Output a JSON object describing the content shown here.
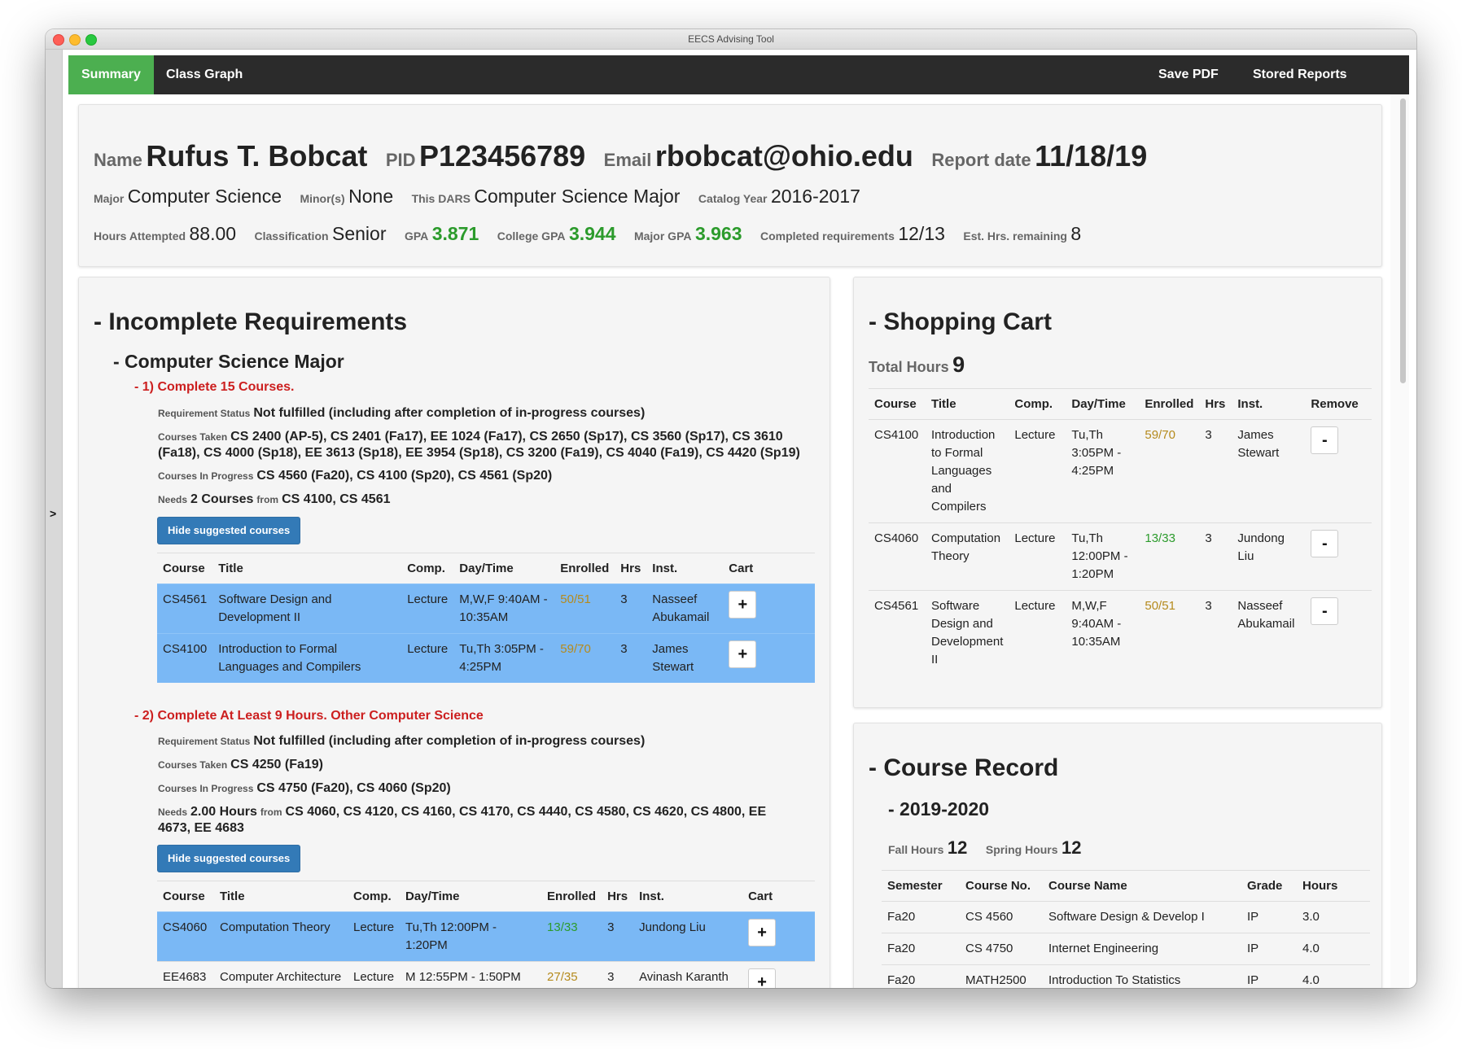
{
  "window": {
    "title": "EECS Advising Tool"
  },
  "sidebar": {
    "toggle": ">"
  },
  "nav": {
    "summary": "Summary",
    "class_graph": "Class Graph",
    "save_pdf": "Save PDF",
    "stored_reports": "Stored Reports"
  },
  "student": {
    "name_label": "Name",
    "name": "Rufus T. Bobcat",
    "pid_label": "PID",
    "pid": "P123456789",
    "email_label": "Email",
    "email": "rbobcat@ohio.edu",
    "report_label": "Report date",
    "report_date": "11/18/19",
    "major_label": "Major",
    "major": "Computer Science",
    "minor_label": "Minor(s)",
    "minor": "None",
    "dars_label": "This DARS",
    "dars": "Computer Science Major",
    "catalog_label": "Catalog Year",
    "catalog": "2016-2017",
    "hours_label": "Hours Attempted",
    "hours": "88.00",
    "class_label": "Classification",
    "classification": "Senior",
    "gpa_label": "GPA",
    "gpa": "3.871",
    "college_gpa_label": "College GPA",
    "college_gpa": "3.944",
    "major_gpa_label": "Major GPA",
    "major_gpa": "3.963",
    "completed_label": "Completed requirements",
    "completed": "12/13",
    "est_label": "Est. Hrs. remaining",
    "est": "8"
  },
  "incomplete": {
    "heading": "- Incomplete Requirements",
    "program": "- Computer Science Major",
    "status_key": "Requirement Status",
    "taken_key": "Courses Taken",
    "progress_key": "Courses In Progress",
    "needs_key": "Needs",
    "from_key": "from",
    "hide_btn": "Hide suggested courses",
    "headers1": [
      "Course",
      "Title",
      "Comp.",
      "Day/Time",
      "Enrolled",
      "Hrs",
      "Inst.",
      "Cart"
    ],
    "req1": {
      "title": "- 1) Complete 15 Courses.",
      "status": "Not fulfilled (including after completion of in-progress courses)",
      "taken": "CS 2400 (AP-5), CS 2401 (Fa17), EE 1024 (Fa17), CS 2650 (Sp17), CS 3560 (Sp17), CS 3610 (Fa18), CS 4000 (Sp18), EE 3613 (Sp18), EE 3954 (Sp18), CS 3200 (Fa19), CS 4040 (Fa19), CS 4420 (Sp19)",
      "in_progress": "CS 4560 (Fa20), CS 4100 (Sp20), CS 4561 (Sp20)",
      "needs": "2 Courses",
      "from": "CS 4100, CS 4561",
      "rows": [
        {
          "course": "CS4561",
          "title": "Software Design and Development II",
          "comp": "Lecture",
          "time": "M,W,F 9:40AM - 10:35AM",
          "enrolled": "50/51",
          "hrs": "3",
          "inst": "Nasseef Abukamail",
          "cart": "+"
        },
        {
          "course": "CS4100",
          "title": "Introduction to Formal Languages and Compilers",
          "comp": "Lecture",
          "time": "Tu,Th 3:05PM - 4:25PM",
          "enrolled": "59/70",
          "hrs": "3",
          "inst": "James Stewart",
          "cart": "+"
        }
      ]
    },
    "req2": {
      "title": "- 2) Complete At Least 9 Hours. Other Computer Science",
      "status": "Not fulfilled (including after completion of in-progress courses)",
      "taken": "CS 4250 (Fa19)",
      "in_progress": "CS 4750 (Fa20), CS 4060 (Sp20)",
      "needs": "2.00 Hours",
      "from": "CS 4060, CS 4120, CS 4160, CS 4170, CS 4440, CS 4580, CS 4620, CS 4800, EE 4673, EE 4683",
      "rows": [
        {
          "course": "CS4060",
          "title": "Computation Theory",
          "comp": "Lecture",
          "time": "Tu,Th 12:00PM - 1:20PM",
          "enrolled": "13/33",
          "hrs": "3",
          "inst": "Jundong Liu",
          "cart": "+"
        },
        {
          "course": "EE4683",
          "title": "Computer Architecture",
          "comp": "Lecture",
          "time": "M 12:55PM - 1:50PM",
          "enrolled": "27/35",
          "hrs": "3",
          "inst": "Avinash Karanth",
          "cart": "+"
        }
      ]
    }
  },
  "cart": {
    "heading": "- Shopping Cart",
    "total_label": "Total Hours",
    "total": "9",
    "headers": [
      "Course",
      "Title",
      "Comp.",
      "Day/Time",
      "Enrolled",
      "Hrs",
      "Inst.",
      "Remove"
    ],
    "rows": [
      {
        "course": "CS4100",
        "title": "Introduction to Formal Languages and Compilers",
        "comp": "Lecture",
        "time": "Tu,Th 3:05PM - 4:25PM",
        "enrolled": "59/70",
        "hrs": "3",
        "inst": "James Stewart",
        "remove": "-"
      },
      {
        "course": "CS4060",
        "title": "Computation Theory",
        "comp": "Lecture",
        "time": "Tu,Th 12:00PM - 1:20PM",
        "enrolled": "13/33",
        "hrs": "3",
        "inst": "Jundong Liu",
        "remove": "-"
      },
      {
        "course": "CS4561",
        "title": "Software Design and Development II",
        "comp": "Lecture",
        "time": "M,W,F 9:40AM - 10:35AM",
        "enrolled": "50/51",
        "hrs": "3",
        "inst": "Nasseef Abukamail",
        "remove": "-"
      }
    ]
  },
  "record": {
    "heading": "- Course Record",
    "year": "- 2019-2020",
    "fall_label": "Fall Hours",
    "fall": "12",
    "spring_label": "Spring Hours",
    "spring": "12",
    "headers": [
      "Semester",
      "Course No.",
      "Course Name",
      "Grade",
      "Hours"
    ],
    "rows": [
      {
        "semester": "Fa20",
        "course": "CS 4560",
        "name": "Software Design & Develop I",
        "grade": "IP",
        "hours": "3.0"
      },
      {
        "semester": "Fa20",
        "course": "CS 4750",
        "name": "Internet Engineering",
        "grade": "IP",
        "hours": "4.0"
      },
      {
        "semester": "Fa20",
        "course": "MATH2500",
        "name": "Introduction To Statistics",
        "grade": "IP",
        "hours": "4.0"
      }
    ]
  }
}
